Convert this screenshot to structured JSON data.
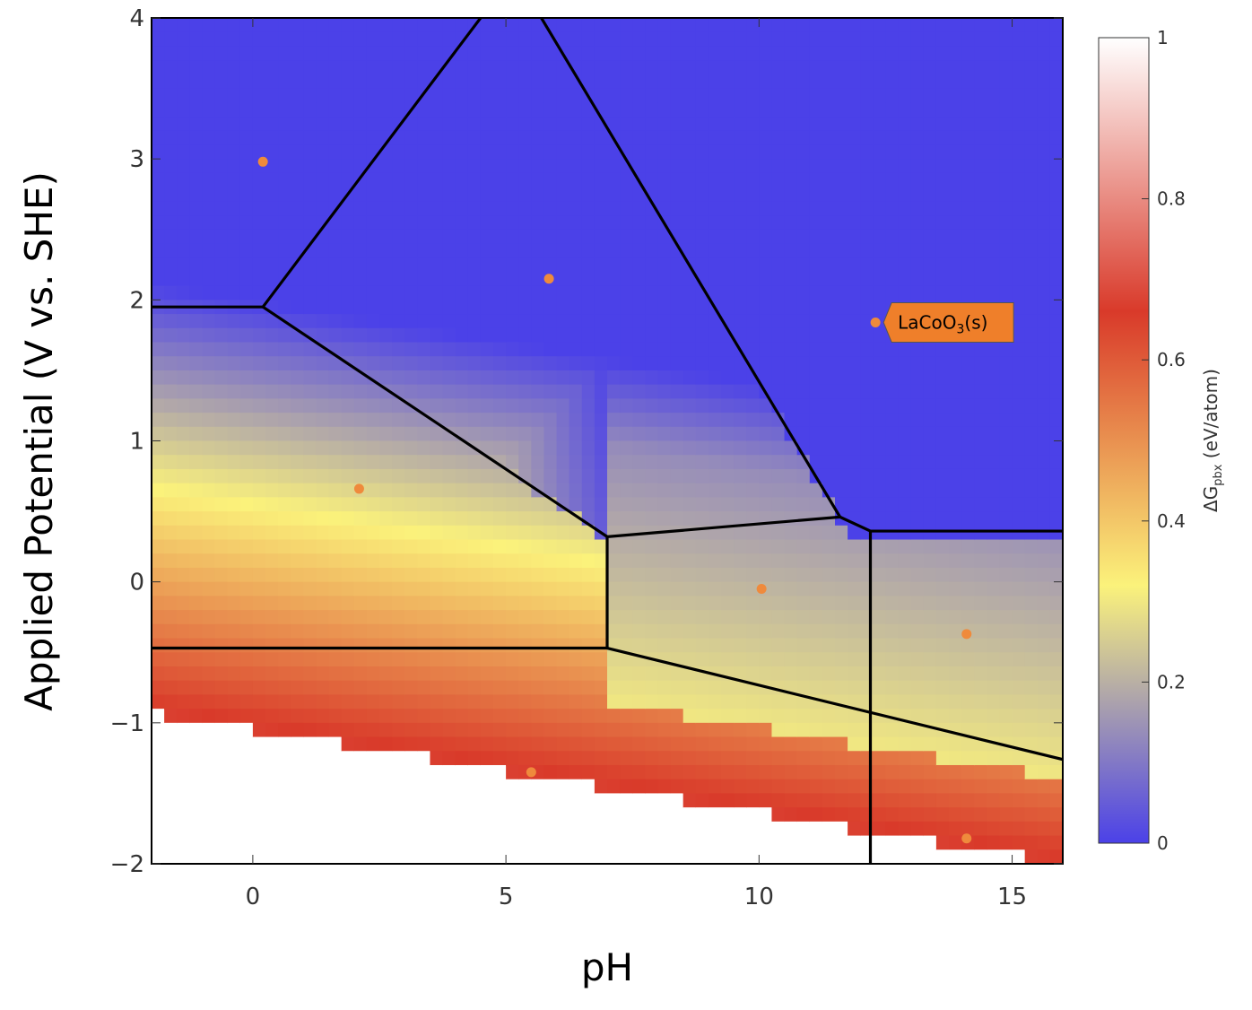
{
  "chart_data": {
    "type": "heatmap",
    "title": "",
    "xlabel": "pH",
    "ylabel": "Applied Potential (V vs. SHE)",
    "xlim": [
      -2,
      16
    ],
    "ylim": [
      -2,
      4
    ],
    "xticks": [
      0,
      5,
      10,
      15
    ],
    "yticks": [
      -2,
      -1,
      0,
      1,
      2,
      3,
      4
    ],
    "xtick_labels": [
      "0",
      "5",
      "10",
      "15"
    ],
    "ytick_labels": [
      "−2",
      "−1",
      "0",
      "1",
      "2",
      "3",
      "4"
    ],
    "grid": false,
    "colorbar": {
      "title_main": "ΔG",
      "title_sub": "pbx",
      "title_unit": " (eV/atom)",
      "range": [
        0,
        1
      ],
      "ticks": [
        0,
        0.2,
        0.4,
        0.6,
        0.8,
        1
      ],
      "tick_labels": [
        "0",
        "0.2",
        "0.4",
        "0.6",
        "0.8",
        "1"
      ],
      "colors": [
        "#4b41e8",
        "#fbf27b",
        "#d93a2a",
        "#ffffff"
      ],
      "color_stops": [
        0,
        0.32,
        0.66,
        1
      ]
    },
    "boundaries": [
      [
        [
          -2,
          1.95
        ],
        [
          0.2,
          1.95
        ]
      ],
      [
        [
          0.2,
          1.95
        ],
        [
          4.5,
          4.0
        ]
      ],
      [
        [
          5.7,
          4.0
        ],
        [
          11.6,
          0.46
        ]
      ],
      [
        [
          0.2,
          1.95
        ],
        [
          7.0,
          0.32
        ]
      ],
      [
        [
          7.0,
          0.32
        ],
        [
          11.6,
          0.46
        ]
      ],
      [
        [
          11.6,
          0.46
        ],
        [
          12.2,
          0.36
        ]
      ],
      [
        [
          12.2,
          0.36
        ],
        [
          16,
          0.36
        ]
      ],
      [
        [
          7.0,
          0.32
        ],
        [
          7.0,
          -0.47
        ]
      ],
      [
        [
          -2,
          -0.47
        ],
        [
          7.0,
          -0.47
        ]
      ],
      [
        [
          7.0,
          -0.47
        ],
        [
          16,
          -1.26
        ]
      ],
      [
        [
          12.2,
          0.36
        ],
        [
          12.2,
          -2.0
        ]
      ]
    ],
    "points": [
      {
        "x": 0.2,
        "y": 2.98
      },
      {
        "x": 5.85,
        "y": 2.15
      },
      {
        "x": 2.1,
        "y": 0.66
      },
      {
        "x": 10.05,
        "y": -0.05
      },
      {
        "x": 14.1,
        "y": -0.37
      },
      {
        "x": 5.5,
        "y": -1.35
      },
      {
        "x": 14.1,
        "y": -1.82
      },
      {
        "x": 12.3,
        "y": 1.84
      }
    ],
    "point_color": "#ef8a3c",
    "annotation": {
      "text_main": "LaCoO",
      "text_sub": "3",
      "text_tail": "(s)",
      "x": 12.3,
      "y": 1.84,
      "fill": "#ef7f2a"
    }
  }
}
